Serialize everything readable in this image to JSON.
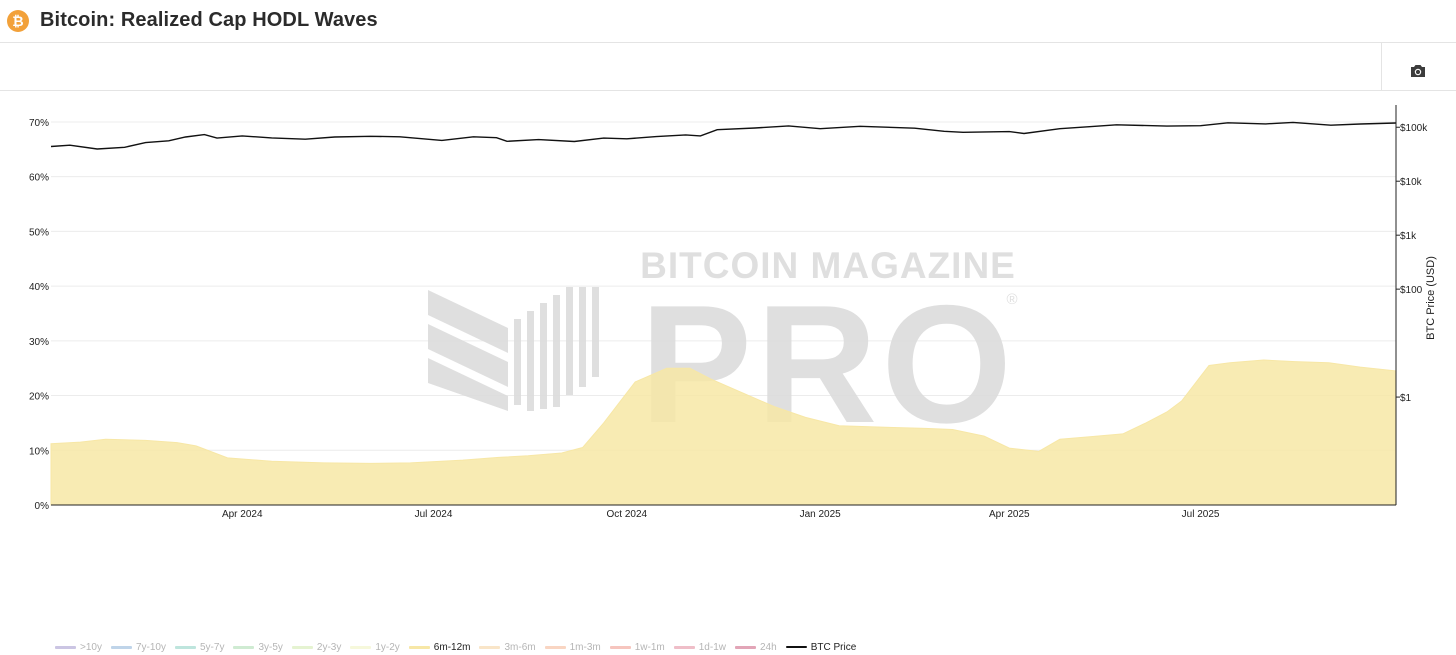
{
  "header": {
    "title": "Bitcoin: Realized Cap HODL Waves",
    "logo_glyph": "₿",
    "logo_color": "#f2a13a"
  },
  "toolbar": {
    "camera_icon": "camera-icon"
  },
  "watermark": {
    "top_text": "BITCOIN MAGAZINE",
    "main_text": "PRO",
    "registered": "®"
  },
  "legend": [
    {
      "label": ">10y",
      "color": "#b9b1da",
      "active": false
    },
    {
      "label": "7y-10y",
      "color": "#a9c6e2",
      "active": false
    },
    {
      "label": "5y-7y",
      "color": "#a8dcd1",
      "active": false
    },
    {
      "label": "3y-5y",
      "color": "#bfe4c3",
      "active": false
    },
    {
      "label": "2y-3y",
      "color": "#dcefc1",
      "active": false
    },
    {
      "label": "1y-2y",
      "color": "#f3f6cf",
      "active": false
    },
    {
      "label": "6m-12m",
      "color": "#f7e7a6",
      "active": true
    },
    {
      "label": "3m-6m",
      "color": "#f7dcb5",
      "active": false
    },
    {
      "label": "1m-3m",
      "color": "#f7c7ad",
      "active": false
    },
    {
      "label": "1w-1m",
      "color": "#f3b2a8",
      "active": false
    },
    {
      "label": "1d-1w",
      "color": "#e9a8b5",
      "active": false
    },
    {
      "label": "24h",
      "color": "#d8879f",
      "active": false
    },
    {
      "label": "BTC Price",
      "color": "#111111",
      "active": true
    }
  ],
  "chart_data": {
    "type": "area",
    "title": "Bitcoin: Realized Cap HODL Waves",
    "x_range": [
      "2024-01-01",
      "2025-10-02"
    ],
    "x_ticks": [
      "Apr 2024",
      "Jul 2024",
      "Oct 2024",
      "Jan 2025",
      "Apr 2025",
      "Jul 2025"
    ],
    "x_tick_dates": [
      "2024-04-01",
      "2024-07-01",
      "2024-10-01",
      "2025-01-01",
      "2025-04-01",
      "2025-07-01"
    ],
    "y_left": {
      "range": [
        0,
        0.72
      ],
      "ticks": [
        0,
        0.1,
        0.2,
        0.3,
        0.4,
        0.5,
        0.6,
        0.7
      ],
      "tick_labels": [
        "0%",
        "10%",
        "20%",
        "30%",
        "40%",
        "50%",
        "60%",
        "70%"
      ]
    },
    "y_right": {
      "label": "BTC Price (USD)",
      "scale": "log",
      "range": [
        0.01,
        200000
      ],
      "ticks": [
        1,
        100,
        1000,
        10000,
        100000
      ],
      "tick_labels": [
        "$1",
        "$100",
        "$1k",
        "$10k",
        "$100k"
      ]
    },
    "grid": true,
    "series": [
      {
        "name": "6m-12m",
        "axis": "left",
        "color": "#f7e7a6",
        "x": [
          "2024-01-01",
          "2024-01-15",
          "2024-01-27",
          "2024-02-15",
          "2024-03-01",
          "2024-03-10",
          "2024-03-25",
          "2024-04-15",
          "2024-05-10",
          "2024-06-01",
          "2024-06-20",
          "2024-07-15",
          "2024-08-01",
          "2024-08-15",
          "2024-08-31",
          "2024-09-10",
          "2024-09-20",
          "2024-09-30",
          "2024-10-05",
          "2024-10-20",
          "2024-10-31",
          "2024-11-10",
          "2024-11-25",
          "2024-12-10",
          "2024-12-25",
          "2025-01-10",
          "2025-02-01",
          "2025-02-20",
          "2025-03-05",
          "2025-03-20",
          "2025-04-01",
          "2025-04-10",
          "2025-04-15",
          "2025-04-25",
          "2025-05-10",
          "2025-05-25",
          "2025-06-05",
          "2025-06-15",
          "2025-06-22",
          "2025-06-30",
          "2025-07-05",
          "2025-07-15",
          "2025-07-31",
          "2025-08-15",
          "2025-08-31",
          "2025-09-15",
          "2025-10-02"
        ],
        "y": [
          0.112,
          0.115,
          0.12,
          0.118,
          0.114,
          0.108,
          0.086,
          0.08,
          0.077,
          0.076,
          0.077,
          0.082,
          0.087,
          0.09,
          0.095,
          0.105,
          0.15,
          0.2,
          0.225,
          0.25,
          0.25,
          0.23,
          0.205,
          0.18,
          0.16,
          0.145,
          0.142,
          0.14,
          0.138,
          0.126,
          0.104,
          0.1,
          0.098,
          0.12,
          0.125,
          0.13,
          0.15,
          0.17,
          0.19,
          0.23,
          0.255,
          0.26,
          0.265,
          0.262,
          0.26,
          0.252,
          0.245
        ]
      },
      {
        "name": "BTC Price",
        "axis": "right",
        "color": "#111111",
        "x": [
          "2024-01-01",
          "2024-01-10",
          "2024-01-23",
          "2024-02-05",
          "2024-02-15",
          "2024-02-26",
          "2024-03-05",
          "2024-03-14",
          "2024-03-20",
          "2024-04-01",
          "2024-04-15",
          "2024-05-01",
          "2024-05-15",
          "2024-06-01",
          "2024-06-15",
          "2024-07-05",
          "2024-07-20",
          "2024-07-31",
          "2024-08-05",
          "2024-08-20",
          "2024-09-06",
          "2024-09-20",
          "2024-10-01",
          "2024-10-15",
          "2024-10-29",
          "2024-11-05",
          "2024-11-13",
          "2024-12-01",
          "2024-12-17",
          "2025-01-01",
          "2025-01-20",
          "2025-02-15",
          "2025-03-01",
          "2025-03-10",
          "2025-04-01",
          "2025-04-08",
          "2025-04-25",
          "2025-05-10",
          "2025-05-22",
          "2025-06-15",
          "2025-07-01",
          "2025-07-14",
          "2025-08-01",
          "2025-08-14",
          "2025-09-01",
          "2025-09-15",
          "2025-10-02"
        ],
        "y": [
          44000,
          46500,
          39500,
          42500,
          52000,
          56000,
          66000,
          73000,
          63000,
          69000,
          63500,
          60000,
          66000,
          68000,
          66500,
          57000,
          66500,
          64000,
          55000,
          59000,
          54500,
          63000,
          61000,
          67000,
          72000,
          69000,
          90000,
          97000,
          106000,
          94000,
          104000,
          96000,
          84000,
          80500,
          83000,
          76500,
          94000,
          103000,
          111000,
          105000,
          107000,
          121000,
          115500,
          123000,
          109000,
          115000,
          120000
        ]
      }
    ]
  }
}
